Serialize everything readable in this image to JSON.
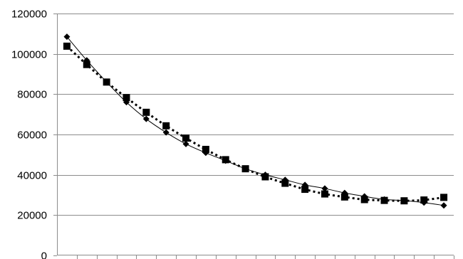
{
  "chart_data": {
    "type": "scatter",
    "title": "",
    "xlabel": "",
    "ylabel": "",
    "x": [
      1,
      2,
      3,
      4,
      5,
      6,
      7,
      8,
      9,
      10,
      11,
      12,
      13,
      14,
      15,
      16,
      17,
      18,
      19,
      20
    ],
    "ylim": [
      0,
      120000
    ],
    "y_ticks": [
      "0",
      "20000",
      "40000",
      "60000",
      "80000",
      "100000",
      "120000"
    ],
    "grid": true,
    "legend": "none",
    "series": [
      {
        "marker": "diamond",
        "line": "thin-solid",
        "color": "#000000",
        "values": [
          108500,
          96800,
          86000,
          76000,
          67700,
          61000,
          55300,
          50900,
          47000,
          43000,
          40000,
          37500,
          35000,
          33200,
          31000,
          29300,
          27800,
          27200,
          26200,
          24800
        ]
      },
      {
        "marker": "square",
        "line": "thick-dotted",
        "color": "#000000",
        "values": [
          103800,
          94700,
          86000,
          78300,
          71000,
          64300,
          58200,
          52600,
          47500,
          43000,
          39000,
          35800,
          32800,
          30500,
          29000,
          27700,
          27300,
          27100,
          27500,
          28800
        ]
      }
    ]
  }
}
